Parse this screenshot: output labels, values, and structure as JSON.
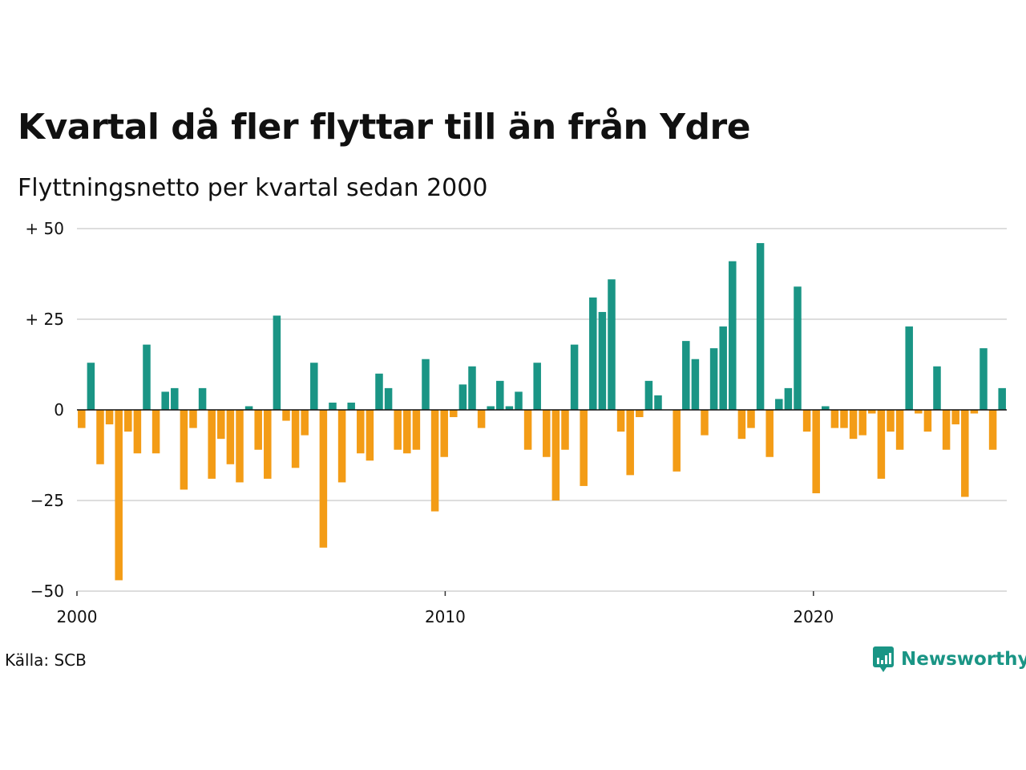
{
  "title": "Kvartal då fler flyttar till än från Ydre",
  "subtitle": "Flyttningsnetto per kvartal sedan 2000",
  "source": "Källa: SCB",
  "brand": {
    "name": "Newsworthy",
    "icon": "newsworthy-chart-bubble-icon"
  },
  "colors": {
    "positive": "#1a9585",
    "negative": "#f39c16",
    "grid": "#dddddd",
    "zero_line": "#111111"
  },
  "chart_data": {
    "type": "bar",
    "title": "Kvartal då fler flyttar till än från Ydre",
    "subtitle": "Flyttningsnetto per kvartal sedan 2000",
    "xlabel": "",
    "ylabel": "",
    "x_start": "2000-Q1",
    "x_ticks": [
      {
        "label": "2000",
        "value": 2000
      },
      {
        "label": "2010",
        "value": 2010
      },
      {
        "label": "2020",
        "value": 2020
      }
    ],
    "x_range": [
      2000,
      2025.25
    ],
    "y_ticks": [
      {
        "label": "+ 50",
        "value": 50
      },
      {
        "label": "+ 25",
        "value": 25
      },
      {
        "label": "0",
        "value": 0
      },
      {
        "label": "−25",
        "value": -25
      },
      {
        "label": "−50",
        "value": -50
      }
    ],
    "ylim": [
      -50,
      50
    ],
    "grid": true,
    "values": [
      -5,
      13,
      -15,
      -4,
      -47,
      -6,
      -12,
      18,
      -12,
      5,
      6,
      -22,
      -5,
      6,
      -19,
      -8,
      -15,
      -20,
      1,
      -11,
      -19,
      26,
      -3,
      -16,
      -7,
      13,
      -38,
      2,
      -20,
      2,
      -12,
      -14,
      10,
      6,
      -11,
      -12,
      -11,
      14,
      -28,
      -13,
      -2,
      7,
      12,
      -5,
      1,
      8,
      1,
      5,
      -11,
      13,
      -13,
      -25,
      -11,
      18,
      -21,
      31,
      27,
      36,
      -6,
      -18,
      -2,
      8,
      4,
      0,
      -17,
      19,
      14,
      -7,
      17,
      23,
      41,
      -8,
      -5,
      46,
      -13,
      3,
      6,
      34,
      -6,
      -23,
      1,
      -5,
      -5,
      -8,
      -7,
      -1,
      -19,
      -6,
      -11,
      23,
      -1,
      -6,
      12,
      -11,
      -4,
      -24,
      -1,
      17,
      -11,
      6
    ]
  }
}
